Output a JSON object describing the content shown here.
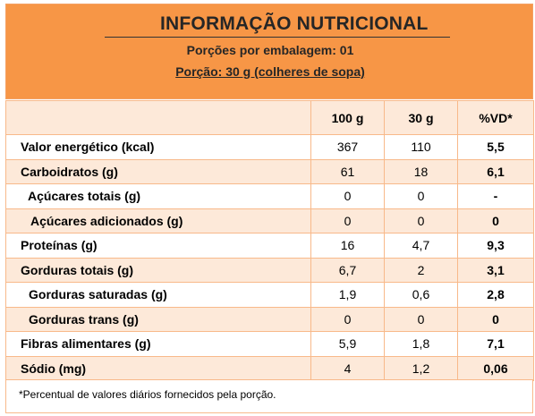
{
  "header": {
    "title": "INFORMAÇÃO NUTRICIONAL",
    "servings": "Porções por embalagem: 01",
    "serving_size": "Porção: 30 g (colheres de sopa)"
  },
  "table": {
    "columns": [
      "",
      "100 g",
      "30 g",
      "%VD*"
    ],
    "rows": [
      {
        "name": "Valor energético (kcal)",
        "c100": "367",
        "c30": "110",
        "vd": "5,5"
      },
      {
        "name": "Carboidratos (g)",
        "c100": "61",
        "c30": "18",
        "vd": "6,1"
      },
      {
        "name": "Açúcares totais (g)",
        "c100": "0",
        "c30": "0",
        "vd": "-"
      },
      {
        "name": "Açúcares adicionados (g)",
        "c100": "0",
        "c30": "0",
        "vd": "0"
      },
      {
        "name": "Proteínas (g)",
        "c100": "16",
        "c30": "4,7",
        "vd": "9,3"
      },
      {
        "name": "Gorduras totais (g)",
        "c100": "6,7",
        "c30": "2",
        "vd": "3,1"
      },
      {
        "name": "Gorduras saturadas (g)",
        "c100": "1,9",
        "c30": "0,6",
        "vd": "2,8"
      },
      {
        "name": "Gorduras trans (g)",
        "c100": "0",
        "c30": "0",
        "vd": "0"
      },
      {
        "name": "Fibras alimentares (g)",
        "c100": "5,9",
        "c30": "1,8",
        "vd": "7,1"
      },
      {
        "name": "Sódio (mg)",
        "c100": "4",
        "c30": "1,2",
        "vd": "0,06"
      }
    ]
  },
  "footer": {
    "note": "*Percentual de valores diários fornecidos pela porção."
  },
  "colors": {
    "header_bg": "#f79646",
    "row_alt_bg": "#fde9d9",
    "border": "#f8b98a"
  }
}
